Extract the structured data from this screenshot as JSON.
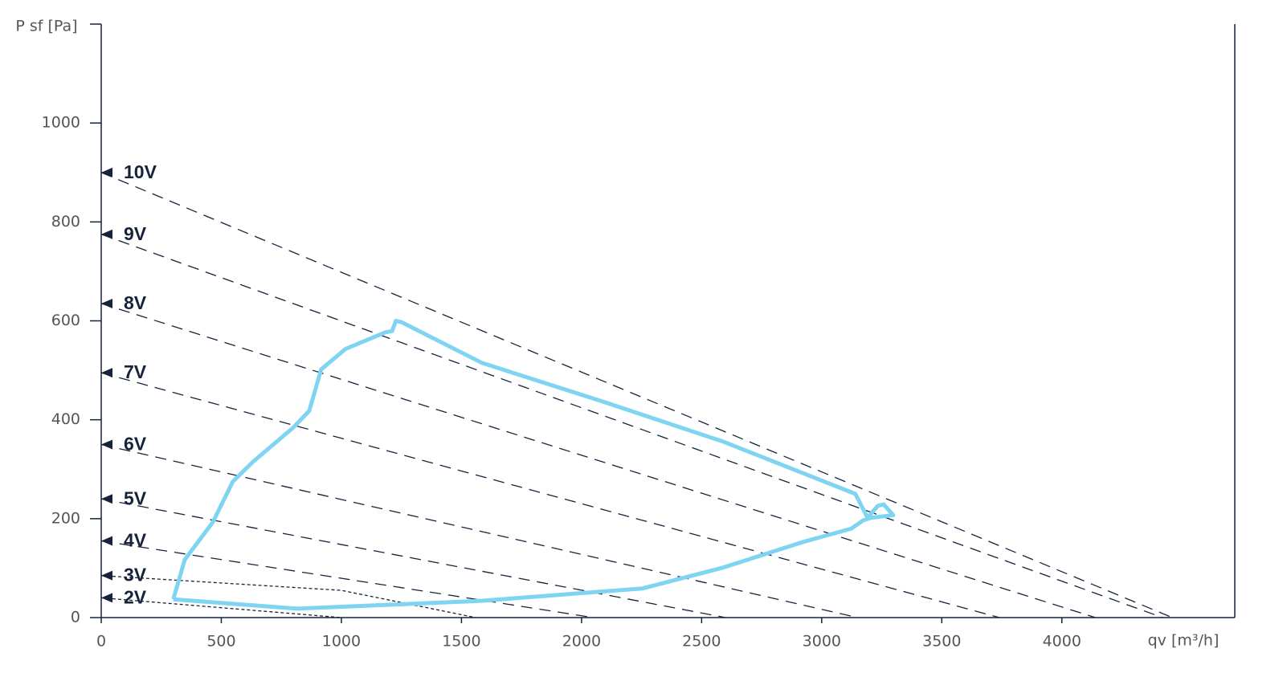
{
  "chart_data": {
    "type": "line",
    "y_label": "P sf [Pa]",
    "x_label": "qv [m³/h]",
    "xlim": [
      0,
      4720
    ],
    "ylim": [
      0,
      1200
    ],
    "xticks": [
      0,
      500,
      1000,
      1500,
      2000,
      2500,
      3000,
      3500,
      4000
    ],
    "yticks": [
      0,
      200,
      400,
      600,
      800,
      1000
    ],
    "axis_color": "#17223b",
    "series": [
      {
        "name": "10V",
        "color": "#17223b",
        "dash": "14 9",
        "x": [
          0,
          4460
        ],
        "values": [
          900,
          0
        ]
      },
      {
        "name": "9V",
        "color": "#17223b",
        "dash": "14 9",
        "x": [
          0,
          4420
        ],
        "values": [
          775,
          0
        ]
      },
      {
        "name": "8V",
        "color": "#17223b",
        "dash": "14 9",
        "x": [
          0,
          4140
        ],
        "values": [
          635,
          0
        ]
      },
      {
        "name": "7V",
        "color": "#17223b",
        "dash": "14 9",
        "x": [
          0,
          3740
        ],
        "values": [
          495,
          0
        ]
      },
      {
        "name": "6V",
        "color": "#17223b",
        "dash": "14 9",
        "x": [
          0,
          3150
        ],
        "values": [
          350,
          0
        ]
      },
      {
        "name": "5V",
        "color": "#17223b",
        "dash": "14 9",
        "x": [
          0,
          2600
        ],
        "values": [
          240,
          0
        ]
      },
      {
        "name": "4V",
        "color": "#17223b",
        "dash": "14 9",
        "x": [
          0,
          2050
        ],
        "values": [
          155,
          0
        ]
      },
      {
        "name": "3V",
        "color": "#17223b",
        "dash": "4 3",
        "x": [
          0,
          1000,
          1560
        ],
        "values": [
          85,
          55,
          0
        ]
      },
      {
        "name": "2V",
        "color": "#17223b",
        "dash": "4 3",
        "x": [
          0,
          1000
        ],
        "values": [
          40,
          0
        ]
      }
    ],
    "envelope": {
      "color": "#7fd4f2",
      "x": [
        300,
        348,
        465,
        548,
        632,
        799,
        866,
        916,
        1017,
        1184,
        1211,
        1227,
        1251,
        1585,
        2087,
        2589,
        3140,
        3191,
        3234,
        3258,
        3298,
        3207,
        3174,
        3124,
        2923,
        2589,
        2254,
        1585,
        816,
        300
      ],
      "values": [
        37,
        117,
        193,
        275,
        315,
        384,
        418,
        502,
        543,
        577,
        579,
        600,
        597,
        515,
        437,
        356,
        250,
        202,
        226,
        229,
        207,
        202,
        197,
        180,
        153,
        101,
        59,
        34,
        18,
        37
      ]
    }
  }
}
